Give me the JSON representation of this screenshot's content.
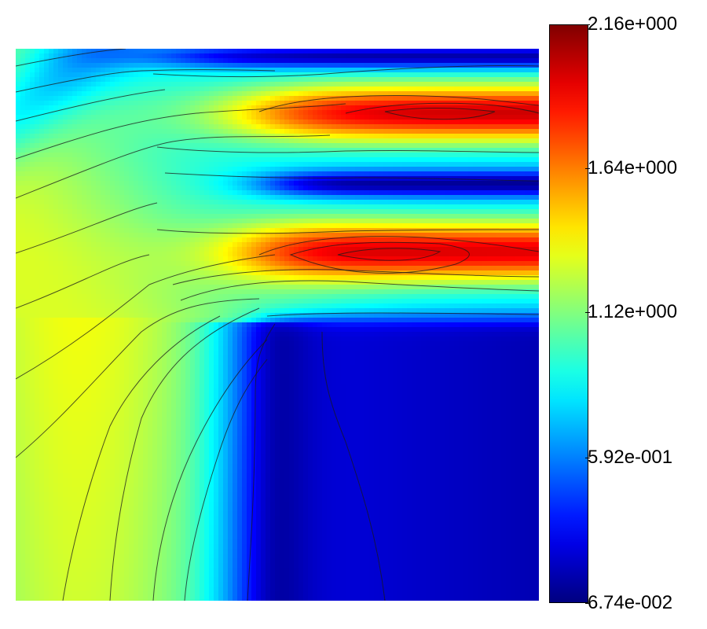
{
  "chart_data": {
    "type": "heatmap",
    "title": "",
    "xlabel": "",
    "ylabel": "",
    "colormap": "jet",
    "contour_lines": true,
    "legend": "right",
    "colorbar": {
      "min": 0.0674,
      "max": 2.16,
      "ticks": [
        {
          "value": 2.16,
          "label": "2.16e+000"
        },
        {
          "value": 1.64,
          "label": "1.64e+000"
        },
        {
          "value": 1.12,
          "label": "1.12e+000"
        },
        {
          "value": 0.592,
          "label": "5.92e-001"
        },
        {
          "value": 0.0674,
          "label": "6.74e-002"
        }
      ]
    },
    "features": [
      {
        "kind": "jet-core",
        "peak_value": 2.1
      },
      {
        "kind": "jet-core",
        "peak_value": 2.05
      },
      {
        "kind": "low-velocity-gap",
        "value": 0.2
      },
      {
        "kind": "wake-region",
        "value": 0.15
      },
      {
        "kind": "inflow-band",
        "value": 1.4
      }
    ]
  }
}
